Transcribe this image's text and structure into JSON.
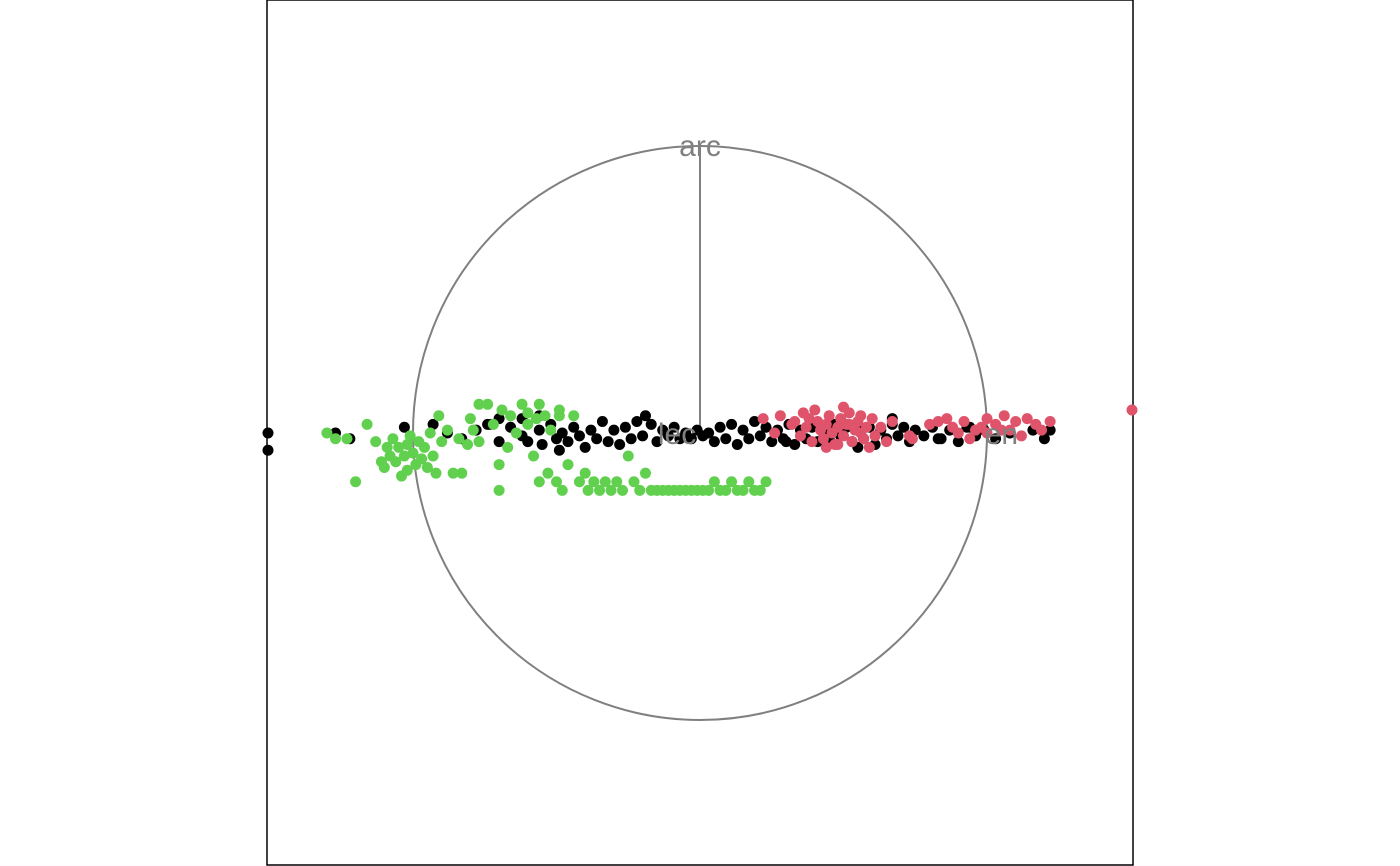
{
  "chart_data": {
    "type": "scatter",
    "title": "",
    "xlabel": "",
    "ylabel": "",
    "xlim": [
      -1.52,
      1.52
    ],
    "ylim": [
      -1.52,
      1.52
    ],
    "grid": false,
    "legend": "none",
    "circle": {
      "radius": 1,
      "color": "#808080"
    },
    "axes": [
      {
        "label": "arc",
        "x": 0,
        "y": 1
      },
      {
        "label": "lec",
        "x": -0.08,
        "y": 0
      },
      {
        "label": "en",
        "x": 1.05,
        "y": 0
      }
    ],
    "series": [
      {
        "color": "#000000",
        "points": [
          [
            -1.52,
            0.0
          ],
          [
            -1.27,
            0.0
          ],
          [
            -1.22,
            -0.02
          ],
          [
            -1.03,
            0.02
          ],
          [
            -0.93,
            0.03
          ],
          [
            -0.88,
            0.0
          ],
          [
            -0.83,
            -0.02
          ],
          [
            -0.78,
            0.01
          ],
          [
            -0.73,
            0.03
          ],
          [
            -0.7,
            -0.03
          ],
          [
            -0.66,
            0.02
          ],
          [
            -0.62,
            -0.01
          ],
          [
            -0.6,
            -0.03
          ],
          [
            -0.56,
            0.01
          ],
          [
            -0.55,
            -0.04
          ],
          [
            -0.52,
            0.03
          ],
          [
            -0.5,
            -0.02
          ],
          [
            -0.48,
            0.0
          ],
          [
            -0.46,
            -0.03
          ],
          [
            -0.44,
            0.02
          ],
          [
            -0.42,
            -0.01
          ],
          [
            -0.4,
            -0.05
          ],
          [
            -0.38,
            0.01
          ],
          [
            -0.36,
            -0.02
          ],
          [
            -0.34,
            0.04
          ],
          [
            -0.32,
            -0.03
          ],
          [
            -0.3,
            0.01
          ],
          [
            -0.28,
            -0.04
          ],
          [
            -0.26,
            0.02
          ],
          [
            -0.24,
            -0.02
          ],
          [
            -0.22,
            0.04
          ],
          [
            -0.2,
            -0.01
          ],
          [
            -0.19,
            0.06
          ],
          [
            -0.17,
            0.03
          ],
          [
            -0.15,
            -0.03
          ],
          [
            -0.13,
            0.01
          ],
          [
            -0.11,
            -0.01
          ],
          [
            -0.09,
            0.02
          ],
          [
            -0.07,
            -0.02
          ],
          [
            -0.05,
            0.0
          ],
          [
            -0.03,
            -0.02
          ],
          [
            -0.01,
            0.01
          ],
          [
            0.01,
            -0.01
          ],
          [
            0.03,
            0.0
          ],
          [
            0.05,
            -0.03
          ],
          [
            0.07,
            0.02
          ],
          [
            0.09,
            -0.02
          ],
          [
            0.11,
            0.03
          ],
          [
            0.13,
            -0.04
          ],
          [
            0.15,
            0.01
          ],
          [
            0.17,
            -0.02
          ],
          [
            0.19,
            0.04
          ],
          [
            0.21,
            -0.01
          ],
          [
            0.23,
            0.02
          ],
          [
            0.25,
            -0.03
          ],
          [
            0.27,
            0.01
          ],
          [
            0.29,
            -0.02
          ],
          [
            0.31,
            0.03
          ],
          [
            0.33,
            -0.04
          ],
          [
            0.35,
            0.01
          ],
          [
            0.37,
            -0.02
          ],
          [
            0.39,
            0.02
          ],
          [
            0.41,
            -0.03
          ],
          [
            0.43,
            0.0
          ],
          [
            0.45,
            -0.02
          ],
          [
            0.47,
            0.03
          ],
          [
            0.49,
            -0.01
          ],
          [
            0.51,
            0.02
          ],
          [
            0.53,
            -0.03
          ],
          [
            0.55,
            0.01
          ],
          [
            0.57,
            -0.02
          ],
          [
            0.59,
            0.02
          ],
          [
            0.61,
            -0.04
          ],
          [
            0.63,
            0.01
          ],
          [
            0.65,
            -0.02
          ],
          [
            0.67,
            0.03
          ],
          [
            0.69,
            -0.01
          ],
          [
            0.71,
            0.02
          ],
          [
            0.73,
            -0.03
          ],
          [
            0.75,
            0.01
          ],
          [
            0.78,
            -0.01
          ],
          [
            0.81,
            0.02
          ],
          [
            0.84,
            -0.02
          ],
          [
            0.87,
            0.01
          ],
          [
            0.9,
            -0.03
          ],
          [
            0.93,
            0.02
          ],
          [
            0.96,
            -0.01
          ],
          [
            0.99,
            0.01
          ],
          [
            1.03,
            -0.02
          ],
          [
            1.08,
            0.0
          ],
          [
            1.16,
            0.01
          ],
          [
            1.2,
            -0.02
          ],
          [
            1.22,
            0.01
          ],
          [
            0.67,
            0.05
          ],
          [
            0.83,
            -0.02
          ],
          [
            0.94,
            0.02
          ],
          [
            0.55,
            -0.05
          ],
          [
            0.3,
            -0.03
          ],
          [
            0.4,
            0.03
          ],
          [
            -0.56,
            0.06
          ],
          [
            -0.62,
            0.05
          ],
          [
            -0.74,
            0.03
          ],
          [
            -0.49,
            -0.06
          ],
          [
            -0.7,
            0.05
          ],
          [
            -1.6,
            -0.06
          ]
        ]
      },
      {
        "color": "#df536b",
        "points": [
          [
            0.22,
            0.05
          ],
          [
            0.28,
            0.06
          ],
          [
            0.32,
            0.03
          ],
          [
            0.35,
            -0.01
          ],
          [
            0.37,
            0.02
          ],
          [
            0.38,
            0.05
          ],
          [
            0.39,
            -0.03
          ],
          [
            0.41,
            0.04
          ],
          [
            0.42,
            0.01
          ],
          [
            0.43,
            -0.02
          ],
          [
            0.44,
            0.03
          ],
          [
            0.45,
            0.06
          ],
          [
            0.46,
            0.0
          ],
          [
            0.47,
            -0.04
          ],
          [
            0.48,
            0.02
          ],
          [
            0.49,
            0.05
          ],
          [
            0.5,
            -0.01
          ],
          [
            0.51,
            0.03
          ],
          [
            0.52,
            0.07
          ],
          [
            0.53,
            -0.03
          ],
          [
            0.54,
            0.01
          ],
          [
            0.55,
            0.04
          ],
          [
            0.56,
            0.0
          ],
          [
            0.57,
            -0.02
          ],
          [
            0.58,
            0.02
          ],
          [
            0.6,
            0.05
          ],
          [
            0.61,
            -0.01
          ],
          [
            0.63,
            0.02
          ],
          [
            0.65,
            -0.03
          ],
          [
            0.67,
            0.04
          ],
          [
            0.36,
            0.07
          ],
          [
            0.4,
            0.08
          ],
          [
            0.44,
            -0.05
          ],
          [
            0.5,
            0.09
          ],
          [
            0.56,
            0.06
          ],
          [
            0.59,
            -0.05
          ],
          [
            0.26,
            0.0
          ],
          [
            0.33,
            0.04
          ],
          [
            0.48,
            -0.04
          ],
          [
            0.52,
            0.03
          ],
          [
            0.73,
            -0.01
          ],
          [
            0.8,
            0.03
          ],
          [
            0.83,
            0.04
          ],
          [
            0.86,
            0.05
          ],
          [
            0.88,
            0.02
          ],
          [
            0.9,
            0.0
          ],
          [
            0.92,
            0.04
          ],
          [
            0.94,
            -0.02
          ],
          [
            0.96,
            0.01
          ],
          [
            0.98,
            0.02
          ],
          [
            1.0,
            0.0
          ],
          [
            1.03,
            0.03
          ],
          [
            1.06,
            0.06
          ],
          [
            1.08,
            0.01
          ],
          [
            1.1,
            0.04
          ],
          [
            1.12,
            -0.01
          ],
          [
            1.14,
            0.05
          ],
          [
            1.17,
            0.03
          ],
          [
            1.19,
            0.01
          ],
          [
            1.22,
            0.04
          ],
          [
            1.0,
            0.05
          ],
          [
            1.05,
            0.01
          ],
          [
            1.57,
            0.08
          ],
          [
            0.74,
            -0.02
          ]
        ]
      },
      {
        "color": "#61d04f",
        "points": [
          [
            -1.3,
            0.0
          ],
          [
            -1.27,
            -0.02
          ],
          [
            -1.23,
            -0.02
          ],
          [
            -1.2,
            -0.17
          ],
          [
            -1.16,
            0.03
          ],
          [
            -1.13,
            -0.03
          ],
          [
            -1.11,
            -0.1
          ],
          [
            -1.1,
            -0.12
          ],
          [
            -1.09,
            -0.05
          ],
          [
            -1.08,
            -0.08
          ],
          [
            -1.07,
            -0.02
          ],
          [
            -1.06,
            -0.1
          ],
          [
            -1.05,
            -0.05
          ],
          [
            -1.04,
            -0.15
          ],
          [
            -1.03,
            -0.08
          ],
          [
            -1.02,
            -0.04
          ],
          [
            -1.02,
            -0.13
          ],
          [
            -1.01,
            -0.01
          ],
          [
            -1.0,
            -0.07
          ],
          [
            -0.99,
            -0.11
          ],
          [
            -0.98,
            -0.03
          ],
          [
            -0.97,
            -0.09
          ],
          [
            -0.96,
            -0.05
          ],
          [
            -0.95,
            -0.12
          ],
          [
            -0.94,
            0.0
          ],
          [
            -0.93,
            -0.08
          ],
          [
            -0.92,
            -0.14
          ],
          [
            -0.91,
            0.06
          ],
          [
            -0.9,
            -0.03
          ],
          [
            -0.88,
            0.01
          ],
          [
            -0.86,
            -0.14
          ],
          [
            -0.84,
            -0.02
          ],
          [
            -0.83,
            -0.14
          ],
          [
            -0.81,
            -0.04
          ],
          [
            -0.79,
            0.01
          ],
          [
            -0.77,
            -0.03
          ],
          [
            -0.74,
            0.1
          ],
          [
            -0.72,
            0.03
          ],
          [
            -0.7,
            -0.11
          ],
          [
            -0.7,
            -0.2
          ],
          [
            -0.67,
            -0.05
          ],
          [
            -0.66,
            0.06
          ],
          [
            -0.64,
            0.0
          ],
          [
            -0.62,
            0.1
          ],
          [
            -0.6,
            0.03
          ],
          [
            -0.58,
            -0.08
          ],
          [
            -0.57,
            0.05
          ],
          [
            -0.56,
            -0.17
          ],
          [
            -0.54,
            0.06
          ],
          [
            -0.53,
            -0.14
          ],
          [
            -0.52,
            0.01
          ],
          [
            -0.5,
            -0.17
          ],
          [
            -0.49,
            0.06
          ],
          [
            -0.48,
            -0.2
          ],
          [
            -0.46,
            -0.11
          ],
          [
            -0.44,
            0.06
          ],
          [
            -0.42,
            -0.17
          ],
          [
            -0.4,
            -0.14
          ],
          [
            -0.39,
            -0.2
          ],
          [
            -0.37,
            -0.17
          ],
          [
            -0.35,
            -0.2
          ],
          [
            -0.33,
            -0.17
          ],
          [
            -0.31,
            -0.2
          ],
          [
            -0.29,
            -0.17
          ],
          [
            -0.27,
            -0.2
          ],
          [
            -0.25,
            -0.08
          ],
          [
            -0.23,
            -0.17
          ],
          [
            -0.21,
            -0.2
          ],
          [
            -0.19,
            -0.14
          ],
          [
            -0.17,
            -0.2
          ],
          [
            -0.15,
            -0.2
          ],
          [
            -0.13,
            -0.2
          ],
          [
            -0.11,
            -0.2
          ],
          [
            -0.09,
            -0.2
          ],
          [
            -0.07,
            -0.2
          ],
          [
            -0.05,
            -0.2
          ],
          [
            -0.03,
            -0.2
          ],
          [
            -0.01,
            -0.2
          ],
          [
            0.01,
            -0.2
          ],
          [
            0.03,
            -0.2
          ],
          [
            0.05,
            -0.17
          ],
          [
            0.07,
            -0.2
          ],
          [
            0.09,
            -0.2
          ],
          [
            0.11,
            -0.17
          ],
          [
            0.13,
            -0.2
          ],
          [
            0.15,
            -0.2
          ],
          [
            0.17,
            -0.17
          ],
          [
            0.19,
            -0.2
          ],
          [
            0.21,
            -0.2
          ],
          [
            0.23,
            -0.17
          ],
          [
            -0.77,
            0.1
          ],
          [
            -0.56,
            0.1
          ],
          [
            -0.49,
            0.08
          ],
          [
            -0.6,
            0.07
          ],
          [
            -0.8,
            0.05
          ],
          [
            -0.69,
            0.08
          ]
        ]
      }
    ]
  }
}
